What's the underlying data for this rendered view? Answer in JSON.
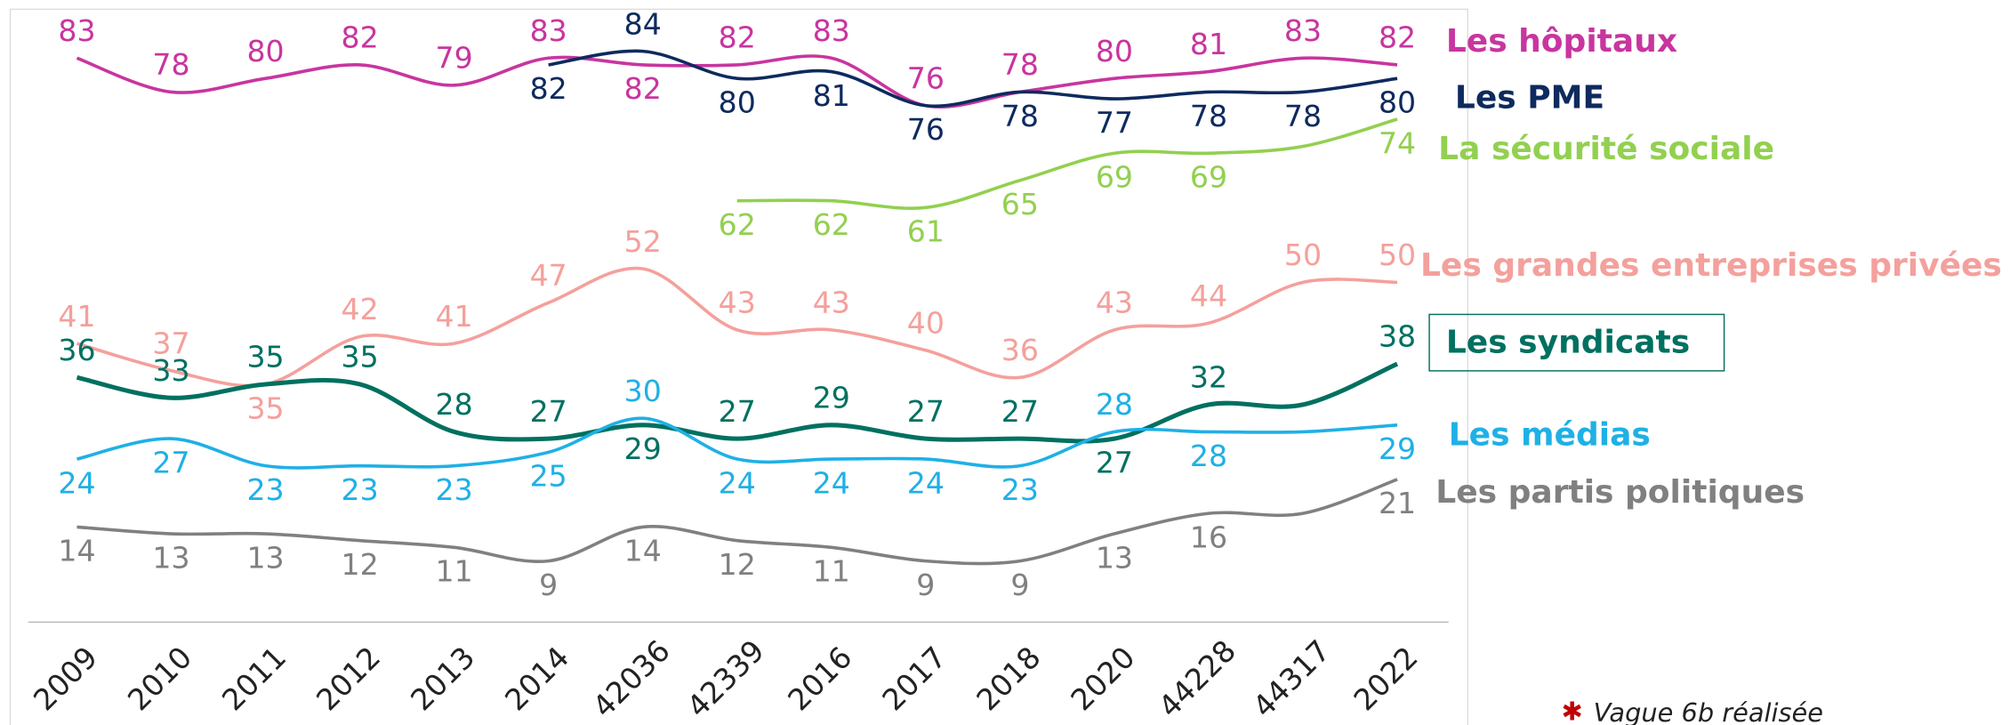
{
  "chart_data": {
    "type": "line",
    "categories": [
      "2009",
      "2010",
      "2011",
      "2012",
      "2013",
      "2014",
      "42036",
      "42339",
      "2016",
      "2017",
      "2018",
      "2020",
      "44228",
      "44317",
      "2022"
    ],
    "series": [
      {
        "name": "Les hôpitaux",
        "color": "#c8359f",
        "values": [
          83,
          78,
          80,
          82,
          79,
          83,
          82,
          82,
          83,
          76,
          78,
          80,
          81,
          83,
          82
        ]
      },
      {
        "name": "Les PME",
        "color": "#0e2a5e",
        "values": [
          null,
          null,
          null,
          null,
          null,
          82,
          84,
          80,
          81,
          76,
          78,
          77,
          78,
          78,
          80
        ]
      },
      {
        "name": "La sécurité sociale",
        "color": "#92d050",
        "values": [
          null,
          null,
          null,
          null,
          null,
          null,
          null,
          62,
          62,
          61,
          65,
          69,
          69,
          70,
          74
        ],
        "value_labels": [
          null,
          null,
          null,
          null,
          null,
          null,
          null,
          62,
          62,
          61,
          65,
          69,
          69,
          null,
          74
        ]
      },
      {
        "name": "Les grandes entreprises privées",
        "color": "#f4a09c",
        "values": [
          41,
          37,
          35,
          42,
          41,
          47,
          52,
          43,
          43,
          40,
          36,
          43,
          44,
          50,
          50
        ]
      },
      {
        "name": "Les syndicats",
        "color": "#007060",
        "values": [
          36,
          33,
          35,
          35,
          28,
          27,
          29,
          27,
          29,
          27,
          27,
          27,
          32,
          32,
          38
        ],
        "value_labels": [
          36,
          33,
          35,
          35,
          28,
          27,
          29,
          27,
          29,
          27,
          27,
          27,
          32,
          null,
          38
        ]
      },
      {
        "name": "Les médias",
        "color": "#1fb0e6",
        "values": [
          24,
          27,
          23,
          23,
          23,
          25,
          30,
          24,
          24,
          24,
          23,
          28,
          28,
          28,
          29
        ],
        "value_labels": [
          24,
          27,
          23,
          23,
          23,
          25,
          30,
          24,
          24,
          24,
          23,
          28,
          28,
          null,
          29
        ]
      },
      {
        "name": "Les partis politiques",
        "color": "#808080",
        "values": [
          14,
          13,
          13,
          12,
          11,
          9,
          14,
          12,
          11,
          9,
          9,
          13,
          16,
          16,
          21
        ],
        "value_labels": [
          14,
          13,
          13,
          12,
          11,
          9,
          14,
          12,
          11,
          9,
          9,
          13,
          16,
          null,
          21
        ]
      }
    ],
    "ylim": [
      0,
      91.5
    ],
    "footnote": "Vague 6b réalisée"
  }
}
